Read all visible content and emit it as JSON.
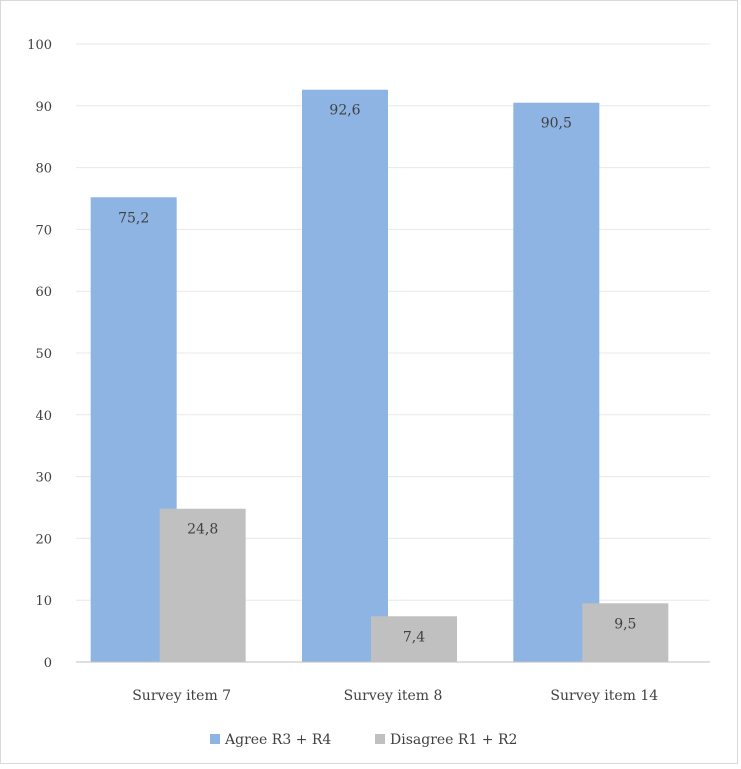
{
  "chart_data": {
    "type": "bar",
    "categories": [
      "Survey item 7",
      "Survey item 8",
      "Survey item 14"
    ],
    "series": [
      {
        "name": "Agree R3 + R4",
        "values": [
          75.2,
          92.6,
          90.5
        ],
        "labels": [
          "75,2",
          "92,6",
          "90,5"
        ],
        "color": "#8db4e2"
      },
      {
        "name": "Disagree R1 + R2",
        "values": [
          24.8,
          7.4,
          9.5
        ],
        "labels": [
          "24,8",
          "7,4",
          "9,5"
        ],
        "color": "#c0c0c0"
      }
    ],
    "ylim": [
      0,
      100
    ],
    "yticks": [
      0,
      10,
      20,
      30,
      40,
      50,
      60,
      70,
      80,
      90,
      100
    ],
    "grid": true,
    "legend": "bottom",
    "title": "",
    "xlabel": "",
    "ylabel": ""
  }
}
